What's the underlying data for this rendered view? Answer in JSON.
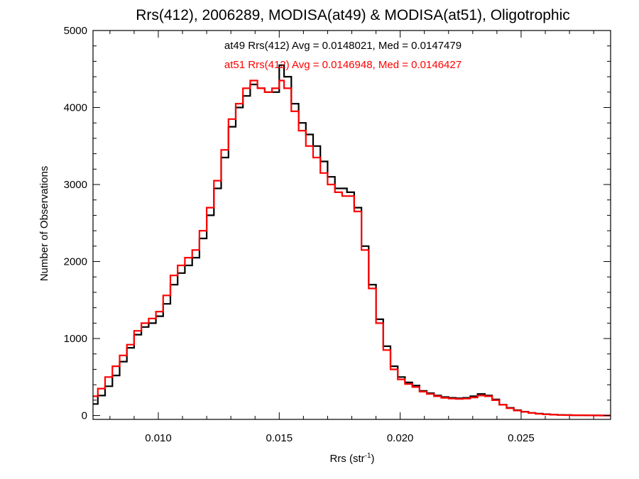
{
  "chart_data": {
    "type": "line",
    "title": "Rrs(412), 2006289, MODISA(at49) & MODISA(at51), Oligotrophic",
    "xlabel": "Rrs (str",
    "xlabel_sup": "-1",
    "xlabel_close": ")",
    "ylabel": "Number of Observations",
    "xlim": [
      0.0073,
      0.0287
    ],
    "ylim": [
      -50,
      5000
    ],
    "xticks": [
      0.01,
      0.015,
      0.02,
      0.025
    ],
    "xtick_labels": [
      "0.010",
      "0.015",
      "0.020",
      "0.025"
    ],
    "yticks": [
      0,
      1000,
      2000,
      3000,
      4000,
      5000
    ],
    "ytick_labels": [
      "0",
      "1000",
      "2000",
      "3000",
      "4000",
      "5000"
    ],
    "grid": false,
    "annotations": [
      {
        "text": "at49 Rrs(412) Avg = 0.0148021, Med = 0.0147479",
        "color": "#000000"
      },
      {
        "text": "at51 Rrs(412) Avg = 0.0146948, Med = 0.0146427",
        "color": "#ff0000"
      }
    ],
    "series": [
      {
        "color": "#000000",
        "x": [
          0.0073,
          0.0075,
          0.0078,
          0.0081,
          0.0084,
          0.0087,
          0.009,
          0.0093,
          0.0096,
          0.0099,
          0.0102,
          0.0105,
          0.0108,
          0.0111,
          0.0114,
          0.0117,
          0.012,
          0.0123,
          0.0126,
          0.0129,
          0.0132,
          0.0135,
          0.0138,
          0.0141,
          0.0144,
          0.0147,
          0.015,
          0.0152,
          0.0155,
          0.0158,
          0.0161,
          0.0164,
          0.0167,
          0.017,
          0.0173,
          0.0176,
          0.0178,
          0.0181,
          0.0184,
          0.0187,
          0.019,
          0.0193,
          0.0196,
          0.0199,
          0.0202,
          0.0205,
          0.0208,
          0.0211,
          0.0214,
          0.0217,
          0.022,
          0.0223,
          0.0226,
          0.0229,
          0.0232,
          0.0235,
          0.0238,
          0.0241,
          0.0244,
          0.0247,
          0.025,
          0.0253,
          0.0256,
          0.0259,
          0.0262,
          0.0265,
          0.0268,
          0.0271,
          0.0274,
          0.0277,
          0.028,
          0.0283,
          0.0287
        ],
        "y": [
          150,
          260,
          380,
          520,
          700,
          880,
          1050,
          1150,
          1200,
          1290,
          1450,
          1700,
          1850,
          1950,
          2050,
          2300,
          2600,
          2950,
          3350,
          3750,
          4000,
          4150,
          4300,
          4250,
          4200,
          4200,
          4550,
          4400,
          4050,
          3800,
          3650,
          3500,
          3300,
          3100,
          2950,
          2950,
          2900,
          2700,
          2200,
          1700,
          1250,
          900,
          640,
          500,
          430,
          390,
          320,
          290,
          260,
          240,
          230,
          225,
          230,
          250,
          280,
          260,
          210,
          140,
          100,
          70,
          50,
          35,
          25,
          18,
          12,
          8,
          6,
          4,
          3,
          2,
          2,
          1,
          1
        ]
      },
      {
        "color": "#ff0000",
        "x": [
          0.0073,
          0.0075,
          0.0078,
          0.0081,
          0.0084,
          0.0087,
          0.009,
          0.0093,
          0.0096,
          0.0099,
          0.0102,
          0.0105,
          0.0108,
          0.0111,
          0.0114,
          0.0117,
          0.012,
          0.0123,
          0.0126,
          0.0129,
          0.0132,
          0.0135,
          0.0138,
          0.0141,
          0.0144,
          0.0147,
          0.015,
          0.0152,
          0.0155,
          0.0158,
          0.0161,
          0.0164,
          0.0167,
          0.017,
          0.0173,
          0.0176,
          0.0178,
          0.0181,
          0.0184,
          0.0187,
          0.019,
          0.0193,
          0.0196,
          0.0199,
          0.0202,
          0.0205,
          0.0208,
          0.0211,
          0.0214,
          0.0217,
          0.022,
          0.0223,
          0.0226,
          0.0229,
          0.0232,
          0.0235,
          0.0238,
          0.0241,
          0.0244,
          0.0247,
          0.025,
          0.0253,
          0.0256,
          0.0259,
          0.0262,
          0.0265,
          0.0268,
          0.0271,
          0.0274,
          0.0277,
          0.028,
          0.0283,
          0.0287
        ],
        "y": [
          250,
          350,
          500,
          640,
          780,
          920,
          1100,
          1200,
          1260,
          1350,
          1560,
          1820,
          1950,
          2050,
          2150,
          2400,
          2700,
          3050,
          3450,
          3850,
          4050,
          4250,
          4350,
          4250,
          4200,
          4250,
          4350,
          4250,
          3950,
          3700,
          3500,
          3350,
          3150,
          3000,
          2900,
          2850,
          2850,
          2650,
          2150,
          1650,
          1200,
          850,
          600,
          470,
          410,
          370,
          310,
          280,
          250,
          230,
          220,
          215,
          220,
          235,
          260,
          250,
          200,
          140,
          95,
          65,
          48,
          33,
          22,
          16,
          11,
          7,
          5,
          4,
          3,
          2,
          1,
          1,
          1
        ]
      }
    ]
  }
}
